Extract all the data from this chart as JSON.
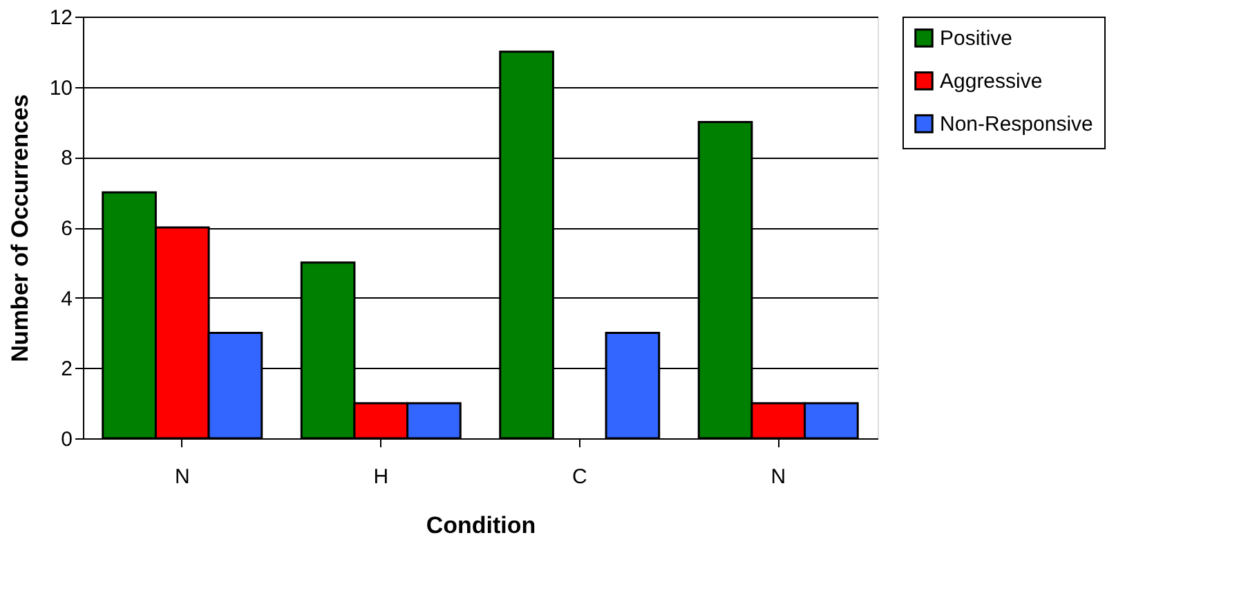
{
  "chart_data": {
    "type": "bar",
    "xlabel": "Condition",
    "ylabel": "Number of Occurrences",
    "categories": [
      "N",
      "H",
      "C",
      "N"
    ],
    "series": [
      {
        "name": "Positive",
        "color": "#008000",
        "values": [
          7,
          5,
          11,
          9
        ]
      },
      {
        "name": "Aggressive",
        "color": "#ff0000",
        "values": [
          6,
          1,
          null,
          1
        ]
      },
      {
        "name": "Non-Responsive",
        "color": "#3366ff",
        "values": [
          3,
          1,
          3,
          1
        ]
      }
    ],
    "ylim": [
      0,
      12
    ],
    "yticks": [
      0,
      2,
      4,
      6,
      8,
      10,
      12
    ],
    "grid": "y",
    "legend": "right"
  }
}
